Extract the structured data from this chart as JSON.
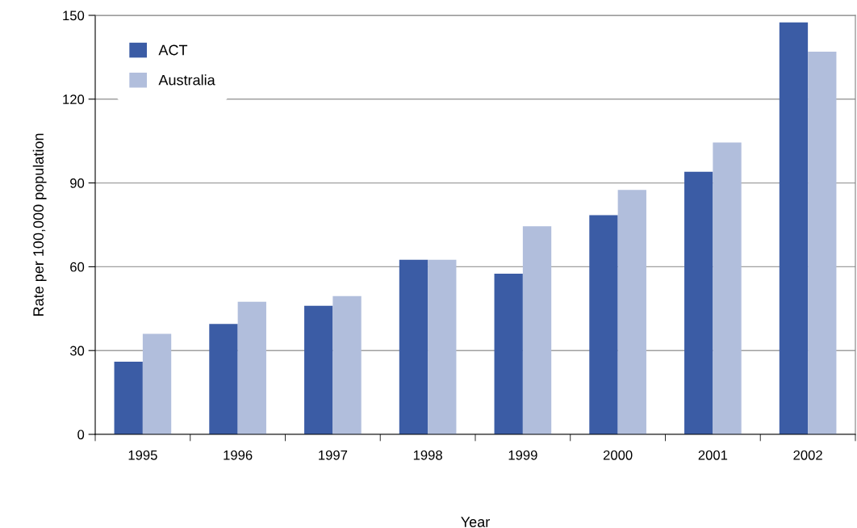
{
  "chart_data": {
    "type": "bar",
    "xlabel": "Year",
    "ylabel": "Rate per 100,000 population",
    "categories": [
      "1995",
      "1996",
      "1997",
      "1998",
      "1999",
      "2000",
      "2001",
      "2002"
    ],
    "series": [
      {
        "name": "ACT",
        "color": "#3b5ca5",
        "values": [
          26,
          39.5,
          46,
          62.5,
          57.5,
          78.5,
          94,
          147.5
        ]
      },
      {
        "name": "Australia",
        "color": "#b1bedc",
        "values": [
          36,
          47.5,
          49.5,
          62.5,
          74.5,
          87.5,
          104.5,
          137
        ]
      }
    ],
    "ylim": [
      0,
      150
    ],
    "yticks": [
      0,
      30,
      60,
      90,
      120,
      150
    ],
    "grid": "y",
    "legend": "top left"
  }
}
